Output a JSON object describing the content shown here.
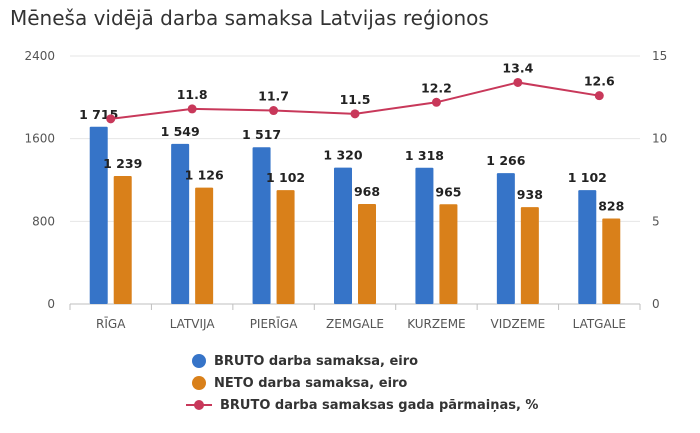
{
  "title": "Mēneša vidējā darba samaksa Latvijas reģionos",
  "colors": {
    "bruto": "#3674c8",
    "neto": "#d9801a",
    "line": "#c8385a",
    "grid": "#e6e6e6",
    "axis": "#bfbfbf"
  },
  "chart_data": {
    "type": "bar",
    "categories": [
      "RĪGA",
      "LATVIJA",
      "PIERĪGA",
      "ZEMGALE",
      "KURZEME",
      "VIDZEME",
      "LATGALE"
    ],
    "series": [
      {
        "name": "BRUTO darba samaksa, eiro",
        "type": "bar",
        "axis": "left",
        "values": [
          1715,
          1549,
          1517,
          1320,
          1318,
          1266,
          1102
        ],
        "labels": [
          "1 715",
          "1 549",
          "1 517",
          "1 320",
          "1 318",
          "1 266",
          "1 102"
        ]
      },
      {
        "name": "NETO darba samaksa, eiro",
        "type": "bar",
        "axis": "left",
        "values": [
          1239,
          1126,
          1102,
          968,
          965,
          938,
          828
        ],
        "labels": [
          "1 239",
          "1 126",
          "1 102",
          "968",
          "965",
          "938",
          "828"
        ]
      },
      {
        "name": "BRUTO darba samaksas gada pārmaiņas, %",
        "type": "line",
        "axis": "right",
        "values": [
          11.2,
          11.8,
          11.7,
          11.5,
          12.2,
          13.4,
          12.6
        ],
        "labels": [
          "",
          "11.8",
          "11.7",
          "11.5",
          "12.2",
          "13.4",
          "12.6"
        ]
      }
    ],
    "y_left": {
      "ylim": [
        0,
        2400
      ],
      "ticks": [
        "0",
        "800",
        "1600",
        "2400"
      ]
    },
    "y_right": {
      "ylim": [
        0,
        15
      ],
      "ticks": [
        "0",
        "5",
        "10",
        "15"
      ]
    },
    "grid": true,
    "legend_position": "bottom"
  }
}
